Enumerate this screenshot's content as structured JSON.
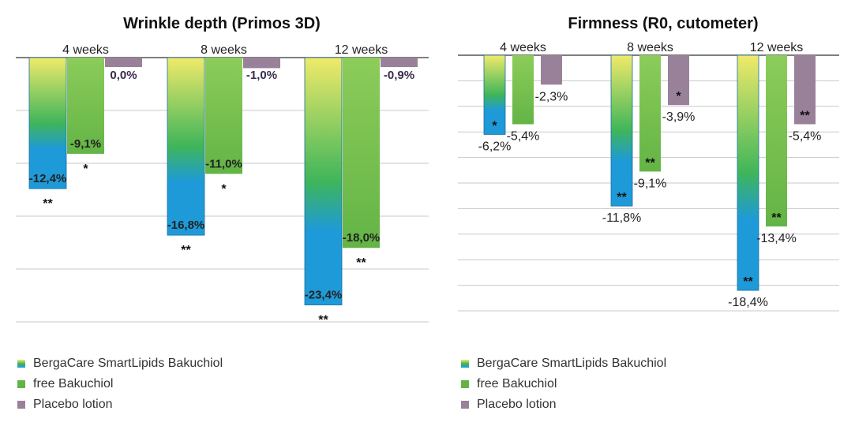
{
  "colors": {
    "bergacare_top": "#f0ea6a",
    "bergacare_mid": "#3fb55a",
    "bergacare_bottom": "#1e9ad8",
    "bakuchiol": "#63b446",
    "placebo": "#9a819a",
    "grid": "#c8c8c8",
    "axis": "#555555",
    "purple_label": "#3a2a4e"
  },
  "legend": [
    {
      "label": "BergaCare SmartLipids Bakuchiol",
      "color_key": "bergacare_mid"
    },
    {
      "label": "free Bakuchiol",
      "color_key": "bakuchiol"
    },
    {
      "label": "Placebo lotion",
      "color_key": "placebo"
    }
  ],
  "chart_data": [
    {
      "type": "bar",
      "title": "Wrinkle depth (Primos 3D)",
      "categories": [
        "4 weeks",
        "8 weeks",
        "12 weeks"
      ],
      "series": [
        {
          "name": "BergaCare SmartLipids Bakuchiol",
          "values": [
            -12.4,
            -16.8,
            -23.4
          ],
          "labels": [
            "-12,4%",
            "-16,8%",
            "-23,4%"
          ],
          "significance": [
            "**",
            "**",
            "**"
          ]
        },
        {
          "name": "free Bakuchiol",
          "values": [
            -9.1,
            -11.0,
            -18.0
          ],
          "labels": [
            "-9,1%",
            "-11,0%",
            "-18,0%"
          ],
          "significance": [
            "*",
            "*",
            "**"
          ]
        },
        {
          "name": "Placebo lotion",
          "values": [
            0.0,
            -1.0,
            -0.9
          ],
          "labels": [
            "0,0%",
            "-1,0%",
            "-0,9%"
          ],
          "significance": [
            "",
            "",
            ""
          ]
        }
      ],
      "ylim": [
        -25,
        0
      ],
      "grid": true,
      "xlabel": "",
      "ylabel": ""
    },
    {
      "type": "bar",
      "title": "Firmness (R0, cutometer)",
      "categories": [
        "4 weeks",
        "8 weeks",
        "12 weeks"
      ],
      "series": [
        {
          "name": "BergaCare SmartLipids Bakuchiol",
          "values": [
            -6.2,
            -11.8,
            -18.4
          ],
          "labels": [
            "-6,2%",
            "-11,8%",
            "-18,4%"
          ],
          "significance": [
            "*",
            "**",
            "**"
          ]
        },
        {
          "name": "free Bakuchiol",
          "values": [
            -5.4,
            -9.1,
            -13.4
          ],
          "labels": [
            "-5,4%",
            "-9,1%",
            "-13,4%"
          ],
          "significance": [
            "",
            "**",
            "**"
          ]
        },
        {
          "name": "Placebo lotion",
          "values": [
            -2.3,
            -3.9,
            -5.4
          ],
          "labels": [
            "-2,3%",
            "-3,9%",
            "-5,4%"
          ],
          "significance": [
            "",
            "*",
            "**"
          ]
        }
      ],
      "ylim": [
        -20,
        0
      ],
      "grid": true,
      "xlabel": "",
      "ylabel": ""
    }
  ]
}
